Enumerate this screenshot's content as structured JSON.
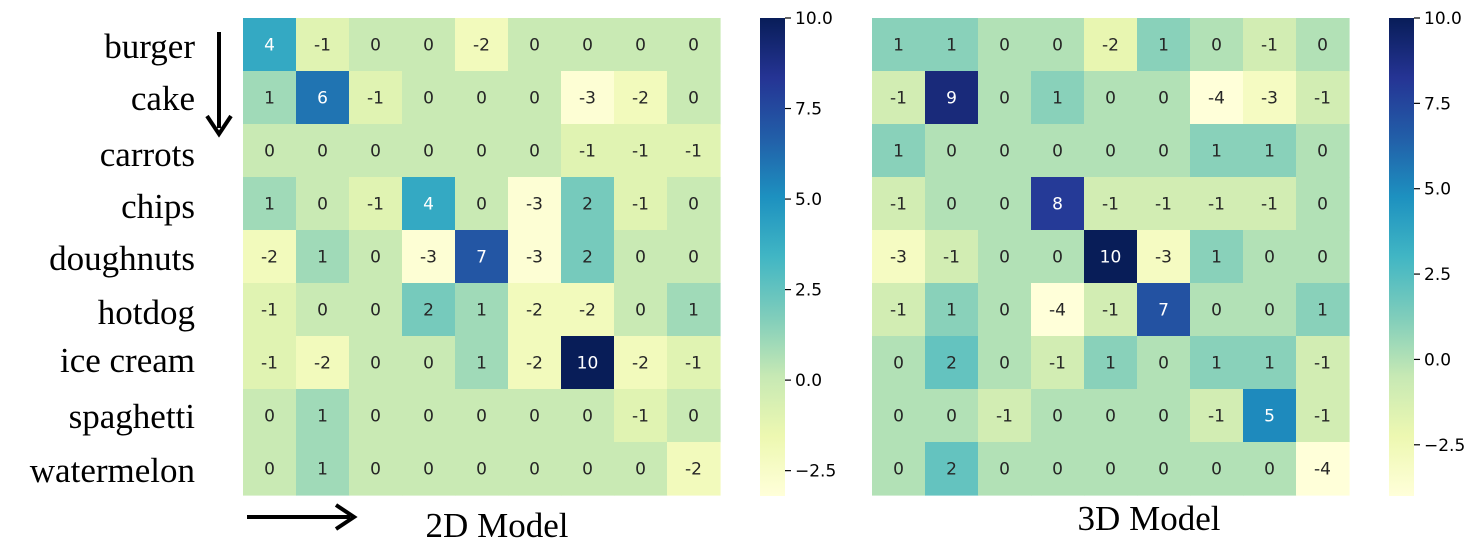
{
  "chart_data": [
    {
      "type": "heatmap",
      "caption": "2D Model",
      "rows": [
        "burger",
        "cake",
        "carrots",
        "chips",
        "doughnuts",
        "hotdog",
        "ice cream",
        "spaghetti",
        "watermelon"
      ],
      "values": [
        [
          4,
          -1,
          0,
          0,
          -2,
          0,
          0,
          0,
          0
        ],
        [
          1,
          6,
          -1,
          0,
          0,
          0,
          -3,
          -2,
          0
        ],
        [
          0,
          0,
          0,
          0,
          0,
          0,
          -1,
          -1,
          -1
        ],
        [
          1,
          0,
          -1,
          4,
          0,
          -3,
          2,
          -1,
          0
        ],
        [
          -2,
          1,
          0,
          -3,
          7,
          -3,
          2,
          0,
          0
        ],
        [
          -1,
          0,
          0,
          2,
          1,
          -2,
          -2,
          0,
          1
        ],
        [
          -1,
          -2,
          0,
          0,
          1,
          -2,
          10,
          -2,
          -1
        ],
        [
          0,
          1,
          0,
          0,
          0,
          0,
          0,
          -1,
          0
        ],
        [
          0,
          1,
          0,
          0,
          0,
          0,
          0,
          0,
          -2
        ]
      ],
      "colorbar": {
        "min": -3.2,
        "max": 10.0,
        "ticks": [
          "10.0",
          "7.5",
          "5.0",
          "2.5",
          "0.0",
          "−2.5"
        ],
        "tick_values": [
          10,
          7.5,
          5,
          2.5,
          0,
          -2.5
        ]
      },
      "colormap": "YlGnBu"
    },
    {
      "type": "heatmap",
      "caption": "3D Model",
      "values": [
        [
          1,
          1,
          0,
          0,
          -2,
          1,
          0,
          -1,
          0
        ],
        [
          -1,
          9,
          0,
          1,
          0,
          0,
          -4,
          -3,
          -1
        ],
        [
          1,
          0,
          0,
          0,
          0,
          0,
          1,
          1,
          0
        ],
        [
          -1,
          0,
          0,
          8,
          -1,
          -1,
          -1,
          -1,
          0
        ],
        [
          -3,
          -1,
          0,
          0,
          10,
          -3,
          1,
          0,
          0
        ],
        [
          -1,
          1,
          0,
          -4,
          -1,
          7,
          0,
          0,
          1
        ],
        [
          0,
          2,
          0,
          -1,
          1,
          0,
          1,
          1,
          -1
        ],
        [
          0,
          0,
          -1,
          0,
          0,
          0,
          -1,
          5,
          -1
        ],
        [
          0,
          2,
          0,
          0,
          0,
          0,
          0,
          0,
          -4
        ]
      ],
      "colorbar": {
        "min": -4.0,
        "max": 10.0,
        "ticks": [
          "10.0",
          "7.5",
          "5.0",
          "2.5",
          "0.0",
          "−2.5"
        ],
        "tick_values": [
          10,
          7.5,
          5,
          2.5,
          0,
          -2.5
        ]
      },
      "colormap": "YlGnBu"
    }
  ]
}
